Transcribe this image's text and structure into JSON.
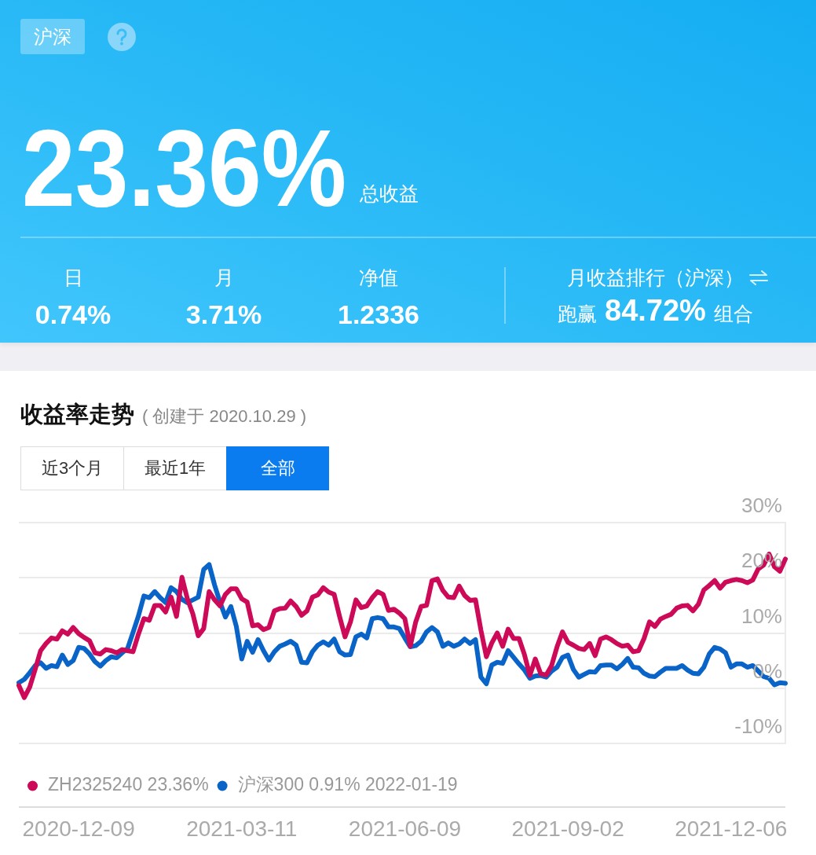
{
  "chart_data": {
    "type": "line",
    "title": "收益率走势",
    "subtitle": "( 创建于 2020.10.29 )",
    "annotations": [
      "沪深",
      "23.36%",
      "总收益",
      "日",
      "0.74%",
      "月",
      "3.71%",
      "净值",
      "1.2336",
      "月收益排行（沪深）",
      "跑赢",
      "84.72%",
      "组合",
      "近3个月",
      "最近1年",
      "全部"
    ],
    "categories": [
      null,
      null,
      null,
      null,
      null,
      null,
      null,
      null,
      null,
      null,
      null,
      "2020-12-09",
      null,
      null,
      null,
      null,
      null,
      null,
      null,
      null,
      null,
      null,
      null,
      null,
      null,
      null,
      null,
      null,
      null,
      null,
      null,
      null,
      null,
      null,
      null,
      null,
      null,
      null,
      null,
      null,
      null,
      "2021-03-11",
      null,
      null,
      null,
      null,
      null,
      null,
      null,
      null,
      null,
      null,
      null,
      null,
      null,
      null,
      null,
      null,
      null,
      null,
      null,
      null,
      null,
      null,
      null,
      null,
      null,
      null,
      null,
      null,
      null,
      "2021-06-09",
      null,
      null,
      null,
      null,
      null,
      null,
      null,
      null,
      null,
      null,
      null,
      null,
      null,
      null,
      null,
      null,
      null,
      null,
      null,
      null,
      null,
      null,
      null,
      null,
      null,
      null,
      null,
      null,
      null,
      "2021-09-02",
      null,
      null,
      null,
      null,
      null,
      null,
      null,
      null,
      null,
      null,
      null,
      null,
      null,
      null,
      null,
      null,
      null,
      null,
      null,
      null,
      null,
      null,
      null,
      null,
      null,
      null,
      null,
      null,
      null,
      "2021-12-06",
      null,
      null,
      null,
      null,
      null,
      null,
      null,
      null,
      null,
      null
    ],
    "series": [
      {
        "name": "ZH2325240 23.36%",
        "color": "#cc0a57",
        "values": [
          0.5,
          -1.7,
          0.2,
          3.4,
          6.8,
          8.1,
          9.1,
          8.9,
          10.4,
          9.8,
          11.0,
          9.9,
          9.2,
          8.6,
          6.4,
          6.2,
          7.0,
          6.8,
          6.4,
          7.0,
          6.8,
          6.6,
          9.8,
          12.6,
          12.3,
          15.0,
          15.0,
          13.8,
          16.5,
          13.0,
          20.1,
          16.2,
          13.5,
          9.5,
          10.8,
          17.5,
          16.0,
          14.9,
          17.0,
          18.0,
          18.0,
          16.2,
          15.6,
          11.3,
          11.5,
          10.6,
          11.0,
          14.0,
          14.4,
          14.5,
          15.8,
          14.8,
          13.2,
          14.0,
          16.5,
          16.9,
          18.2,
          17.4,
          17.0,
          13.0,
          9.3,
          12.0,
          16.0,
          14.6,
          14.9,
          16.4,
          17.5,
          17.0,
          14.1,
          14.3,
          13.6,
          12.6,
          7.6,
          12.0,
          14.8,
          15.0,
          19.5,
          19.8,
          17.7,
          16.5,
          16.4,
          18.5,
          16.8,
          15.9,
          16.0,
          10.5,
          5.7,
          8.2,
          10.0,
          7.6,
          10.7,
          9.0,
          9.0,
          6.1,
          2.3,
          5.3,
          2.6,
          2.4,
          4.1,
          7.5,
          10.2,
          8.3,
          7.8,
          7.2,
          7.0,
          8.1,
          5.9,
          8.9,
          9.3,
          8.8,
          8.1,
          7.6,
          7.8,
          6.6,
          6.8,
          9.0,
          12.0,
          11.2,
          12.5,
          13.0,
          13.4,
          14.5,
          14.9,
          15.0,
          14.0,
          15.2,
          17.8,
          18.6,
          19.5,
          18.1,
          19.2,
          19.5,
          19.7,
          19.5,
          19.1,
          19.6,
          21.6,
          22.3,
          24.3,
          22.0,
          21.2,
          23.4
        ]
      },
      {
        "name": "沪深300 0.91% 2022-01-19",
        "color": "#0a64c8",
        "values": [
          1.0,
          1.6,
          2.8,
          4.1,
          4.6,
          3.6,
          4.1,
          3.9,
          6.0,
          4.3,
          5.0,
          7.4,
          7.2,
          6.2,
          4.8,
          4.0,
          5.0,
          5.7,
          5.5,
          6.4,
          7.2,
          10.1,
          13.1,
          16.7,
          16.4,
          17.5,
          16.4,
          15.5,
          18.2,
          17.5,
          16.1,
          15.5,
          16.0,
          16.5,
          21.5,
          22.4,
          18.7,
          15.6,
          12.9,
          14.8,
          11.2,
          5.3,
          8.5,
          6.5,
          8.8,
          6.8,
          5.1,
          6.6,
          7.6,
          8.0,
          8.5,
          7.8,
          4.7,
          4.6,
          6.6,
          7.8,
          8.4,
          7.8,
          8.9,
          6.6,
          6.0,
          6.1,
          9.3,
          9.8,
          9.1,
          12.6,
          12.8,
          12.6,
          11.1,
          11.1,
          10.8,
          9.1,
          7.5,
          7.7,
          8.5,
          10.2,
          11.0,
          10.2,
          7.6,
          8.2,
          7.6,
          8.0,
          8.9,
          8.1,
          8.8,
          2.0,
          0.8,
          4.2,
          4.7,
          4.5,
          6.8,
          5.6,
          4.4,
          3.3,
          1.8,
          2.2,
          2.3,
          2.0,
          3.1,
          3.8,
          5.6,
          6.0,
          3.4,
          2.0,
          2.5,
          3.0,
          2.9,
          4.1,
          4.2,
          4.2,
          3.5,
          4.3,
          5.4,
          3.8,
          3.7,
          2.7,
          2.2,
          2.1,
          2.9,
          3.6,
          3.6,
          3.6,
          4.1,
          3.3,
          2.7,
          2.6,
          3.8,
          6.2,
          7.4,
          7.1,
          6.4,
          3.8,
          4.4,
          4.4,
          3.8,
          4.1,
          3.1,
          2.1,
          1.8,
          0.6,
          1.0,
          0.9
        ]
      }
    ],
    "ylim": [
      -10,
      30
    ],
    "yticks": [
      {
        "value": -10,
        "label": "-10%"
      },
      {
        "value": 0,
        "label": "0%"
      },
      {
        "value": 10,
        "label": "10%"
      },
      {
        "value": 20,
        "label": "20%"
      },
      {
        "value": 30,
        "label": "30%"
      }
    ],
    "grid": "y",
    "legend": "bottom left",
    "marker": "none",
    "line_style": "solid"
  }
}
